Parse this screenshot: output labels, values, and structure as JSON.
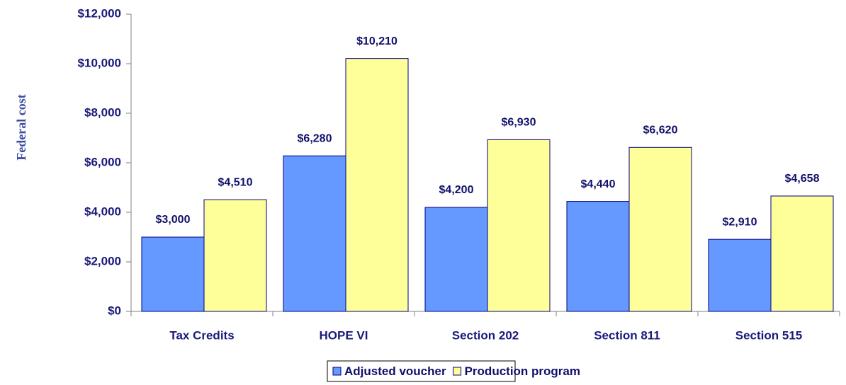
{
  "chart_data": {
    "type": "bar",
    "y_label": "Federal cost",
    "categories": [
      "Tax Credits",
      "HOPE VI",
      "Section 202",
      "Section 811",
      "Section 515"
    ],
    "series": [
      {
        "name": "Adjusted voucher",
        "color": "#6699ff",
        "values": [
          3000,
          6280,
          4200,
          4440,
          2910
        ],
        "value_labels": [
          "$3,000",
          "$6,280",
          "$4,200",
          "$4,440",
          "$2,910"
        ]
      },
      {
        "name": "Production program",
        "color": "#ffff99",
        "values": [
          4510,
          10210,
          6930,
          6620,
          4658
        ],
        "value_labels": [
          "$4,510",
          "$10,210",
          "$6,930",
          "$6,620",
          "$4,658"
        ]
      }
    ],
    "ylim": [
      0,
      12000
    ],
    "yticks": [
      {
        "value": 0,
        "label": "$0"
      },
      {
        "value": 2000,
        "label": "$2,000"
      },
      {
        "value": 4000,
        "label": "$4,000"
      },
      {
        "value": 6000,
        "label": "$6,000"
      },
      {
        "value": 8000,
        "label": "$8,000"
      },
      {
        "value": 10000,
        "label": "$10,000"
      },
      {
        "value": 12000,
        "label": "$12,000"
      }
    ],
    "legend": "bottom"
  }
}
